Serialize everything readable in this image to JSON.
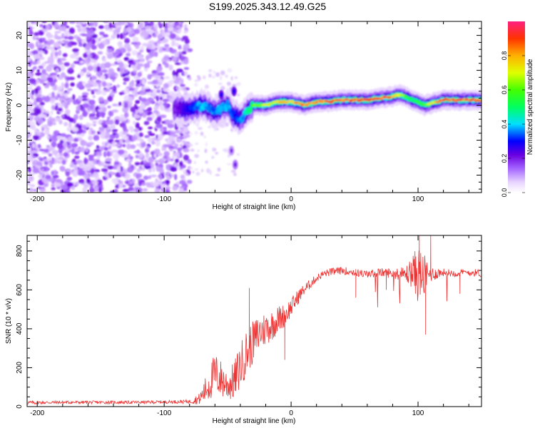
{
  "figure": {
    "title": "S199.2025.343.12.49.G25"
  },
  "chart_data": [
    {
      "type": "heatmap",
      "title": "S199.2025.343.12.49.G25",
      "xlabel": "Height of straight line (km)",
      "ylabel": "Frequency (Hz)",
      "xlim": [
        -208,
        150
      ],
      "ylim": [
        -25,
        24
      ],
      "xticks": [
        -200,
        -100,
        0,
        100
      ],
      "xtick_labels": [
        "-200",
        "-100",
        "0",
        "100"
      ],
      "yticks": [
        -20,
        -10,
        0,
        10,
        20
      ],
      "ytick_labels": [
        "-20",
        "-10",
        "0",
        "10",
        "20"
      ],
      "noise_region": {
        "x_range": [
          -208,
          -80
        ],
        "freq_range": [
          -25,
          24
        ],
        "typical_amplitude": 0.08
      },
      "ridge": {
        "x": [
          -90,
          -80,
          -70,
          -60,
          -55,
          -50,
          -45,
          -40,
          -35,
          -30,
          -20,
          -10,
          0,
          10,
          20,
          30,
          40,
          50,
          60,
          70,
          80,
          85,
          90,
          95,
          100,
          105,
          110,
          120,
          130,
          140,
          150
        ],
        "frequency": [
          -1,
          -1,
          0,
          -2,
          -1,
          0,
          -3,
          -4,
          -2,
          0,
          0,
          1,
          1,
          0,
          1,
          1,
          1.5,
          1.5,
          1.5,
          2,
          2.5,
          3,
          2.5,
          1.5,
          1,
          0,
          0.5,
          1.5,
          1.5,
          1.5,
          1.5
        ],
        "amplitude": [
          0.2,
          0.3,
          0.4,
          0.35,
          0.4,
          0.4,
          0.3,
          0.35,
          0.45,
          0.6,
          0.7,
          0.75,
          0.8,
          0.85,
          0.85,
          0.9,
          0.9,
          0.9,
          0.9,
          0.9,
          0.85,
          0.7,
          0.6,
          0.5,
          0.55,
          0.6,
          0.7,
          0.9,
          0.9,
          0.9,
          0.9
        ]
      },
      "side_features": [
        {
          "x": -45,
          "frequency": 4,
          "amplitude": 0.2
        },
        {
          "x": -55,
          "frequency": 3,
          "amplitude": 0.2
        },
        {
          "x": -47,
          "frequency": -13,
          "amplitude": 0.1
        },
        {
          "x": -44,
          "frequency": -17,
          "amplitude": 0.12
        }
      ],
      "colorbar": {
        "label": "Normalized spectral amplitude",
        "range": [
          0,
          1
        ],
        "ticks": [
          0.0,
          0.2,
          0.4,
          0.6,
          0.8
        ],
        "tick_labels": [
          "0.0",
          "0.2",
          "0.4",
          "0.6",
          "0.8"
        ]
      }
    },
    {
      "type": "line",
      "xlabel": "Height of straight line (km)",
      "ylabel": "SNR (10 * v/v)",
      "xlim": [
        -208,
        150
      ],
      "ylim": [
        0,
        880
      ],
      "xticks": [
        -200,
        -100,
        0,
        100
      ],
      "xtick_labels": [
        "-200",
        "-100",
        "0",
        "100"
      ],
      "yticks": [
        0,
        200,
        400,
        600,
        800
      ],
      "ytick_labels": [
        "0",
        "200",
        "400",
        "600",
        "800"
      ],
      "series": [
        {
          "name": "SNR",
          "color": "#ee3333",
          "x": [
            -208,
            -180,
            -150,
            -120,
            -100,
            -80,
            -72,
            -65,
            -60,
            -55,
            -50,
            -45,
            -40,
            -35,
            -30,
            -25,
            -20,
            -15,
            -10,
            -5,
            0,
            5,
            10,
            15,
            20,
            25,
            30,
            35,
            40,
            50,
            60,
            70,
            80,
            90,
            95,
            100,
            105,
            110,
            120,
            130,
            140,
            150
          ],
          "mean": [
            20,
            22,
            22,
            22,
            24,
            26,
            40,
            110,
            170,
            140,
            110,
            130,
            210,
            280,
            330,
            380,
            400,
            420,
            450,
            470,
            510,
            560,
            600,
            630,
            660,
            680,
            690,
            695,
            700,
            690,
            680,
            690,
            685,
            680,
            690,
            685,
            670,
            680,
            690,
            685,
            690,
            685
          ],
          "noise": [
            10,
            8,
            8,
            8,
            8,
            10,
            30,
            90,
            110,
            100,
            80,
            100,
            120,
            120,
            110,
            100,
            90,
            80,
            70,
            60,
            50,
            40,
            30,
            25,
            20,
            20,
            20,
            20,
            20,
            20,
            20,
            22,
            25,
            40,
            80,
            150,
            110,
            40,
            20,
            20,
            20,
            20
          ]
        }
      ],
      "notable_spikes": [
        {
          "x": -33,
          "value": 610
        },
        {
          "x": -5,
          "value": 240
        },
        {
          "x": 51,
          "value": 560
        },
        {
          "x": 75,
          "value": 600
        },
        {
          "x": 101,
          "value": 880
        },
        {
          "x": 106,
          "value": 370
        },
        {
          "x": 110,
          "value": 880
        },
        {
          "x": 133,
          "value": 580
        }
      ]
    }
  ]
}
